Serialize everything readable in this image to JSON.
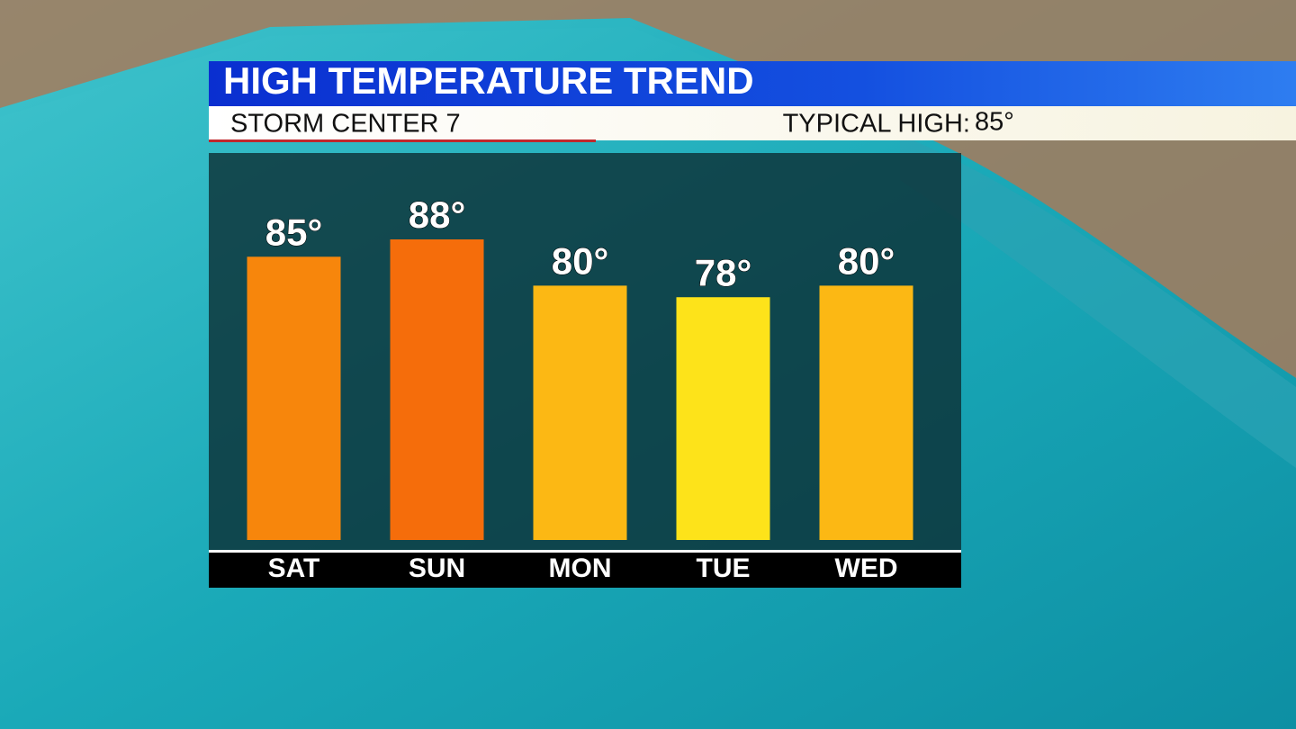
{
  "chart_data": {
    "type": "bar",
    "title": "HIGH TEMPERATURE TREND",
    "subtitle": "STORM CENTER 7",
    "annotations": [
      "TYPICAL HIGH:",
      "85°"
    ],
    "categories": [
      "SAT",
      "SUN",
      "MON",
      "TUE",
      "WED"
    ],
    "values": [
      85,
      88,
      80,
      78,
      80
    ],
    "value_labels": [
      "85°",
      "88°",
      "80°",
      "78°",
      "80°"
    ],
    "colors": [
      "#f7860c",
      "#f56d0b",
      "#fcb814",
      "#fde31a",
      "#fcb814"
    ],
    "ylim": [
      36,
      88
    ]
  }
}
